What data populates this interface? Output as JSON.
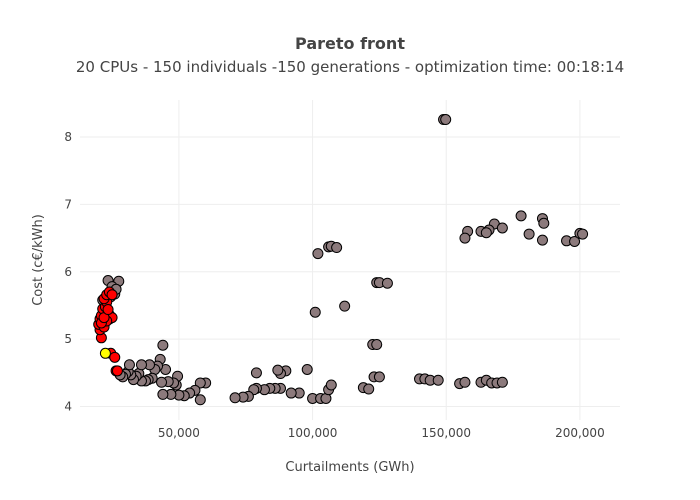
{
  "chart_data": {
    "type": "scatter",
    "title": "Pareto front",
    "subtitle": "20 CPUs - 150 individuals -150 generations - optimization time: 00:18:14",
    "xlabel": "Curtailments (GWh)",
    "ylabel": "Cost (c€/kWh)",
    "xlim": [
      13000,
      215000
    ],
    "ylim": [
      3.8,
      8.55
    ],
    "x_ticks": [
      50000,
      100000,
      150000,
      200000
    ],
    "x_tick_labels": [
      "50,000",
      "100,000",
      "150,000",
      "200,000"
    ],
    "y_ticks": [
      4,
      5,
      6,
      7,
      8
    ],
    "y_tick_labels": [
      "4",
      "5",
      "6",
      "7",
      "8"
    ],
    "grid": true,
    "legend": "none",
    "series": [
      {
        "color": "#8c7a7c",
        "points": [
          [
            149000,
            8.26
          ],
          [
            149800,
            8.26
          ],
          [
            178000,
            6.83
          ],
          [
            186000,
            6.79
          ],
          [
            168000,
            6.71
          ],
          [
            186500,
            6.72
          ],
          [
            163000,
            6.6
          ],
          [
            158000,
            6.6
          ],
          [
            166000,
            6.62
          ],
          [
            171000,
            6.65
          ],
          [
            165000,
            6.58
          ],
          [
            157000,
            6.5
          ],
          [
            181000,
            6.56
          ],
          [
            186000,
            6.47
          ],
          [
            195000,
            6.46
          ],
          [
            198000,
            6.45
          ],
          [
            200000,
            6.57
          ],
          [
            201000,
            6.56
          ],
          [
            106000,
            6.37
          ],
          [
            107000,
            6.38
          ],
          [
            109000,
            6.36
          ],
          [
            102000,
            6.27
          ],
          [
            124000,
            5.84
          ],
          [
            125000,
            5.84
          ],
          [
            128000,
            5.83
          ],
          [
            112000,
            5.49
          ],
          [
            101000,
            5.4
          ],
          [
            122500,
            4.92
          ],
          [
            124000,
            4.92
          ],
          [
            140000,
            4.41
          ],
          [
            142000,
            4.41
          ],
          [
            144000,
            4.39
          ],
          [
            147000,
            4.39
          ],
          [
            155000,
            4.34
          ],
          [
            157000,
            4.36
          ],
          [
            163000,
            4.36
          ],
          [
            165000,
            4.39
          ],
          [
            167000,
            4.35
          ],
          [
            169000,
            4.35
          ],
          [
            171000,
            4.36
          ],
          [
            123000,
            4.44
          ],
          [
            125000,
            4.44
          ],
          [
            119000,
            4.28
          ],
          [
            121000,
            4.26
          ],
          [
            98000,
            4.55
          ],
          [
            100000,
            4.12
          ],
          [
            103000,
            4.12
          ],
          [
            105000,
            4.12
          ],
          [
            106000,
            4.25
          ],
          [
            107000,
            4.32
          ],
          [
            95000,
            4.2
          ],
          [
            92000,
            4.2
          ],
          [
            90000,
            4.53
          ],
          [
            88000,
            4.49
          ],
          [
            87000,
            4.54
          ],
          [
            88000,
            4.27
          ],
          [
            86000,
            4.27
          ],
          [
            84000,
            4.27
          ],
          [
            82000,
            4.25
          ],
          [
            79000,
            4.27
          ],
          [
            78000,
            4.25
          ],
          [
            79000,
            4.5
          ],
          [
            76000,
            4.15
          ],
          [
            74000,
            4.14
          ],
          [
            71000,
            4.13
          ],
          [
            60000,
            4.35
          ],
          [
            58000,
            4.35
          ],
          [
            58000,
            4.1
          ],
          [
            56000,
            4.24
          ],
          [
            54000,
            4.2
          ],
          [
            52000,
            4.16
          ],
          [
            50000,
            4.17
          ],
          [
            49000,
            4.32
          ],
          [
            49500,
            4.45
          ],
          [
            48000,
            4.35
          ],
          [
            47000,
            4.18
          ],
          [
            46000,
            4.37
          ],
          [
            45000,
            4.55
          ],
          [
            44000,
            4.18
          ],
          [
            43500,
            4.36
          ],
          [
            43000,
            4.7
          ],
          [
            44000,
            4.91
          ],
          [
            42000,
            4.6
          ],
          [
            41000,
            4.55
          ],
          [
            40000,
            4.42
          ],
          [
            39000,
            4.62
          ],
          [
            38500,
            4.4
          ],
          [
            37500,
            4.38
          ],
          [
            36000,
            4.38
          ],
          [
            35000,
            4.49
          ],
          [
            34000,
            4.45
          ],
          [
            33000,
            4.4
          ],
          [
            32000,
            4.47
          ],
          [
            31000,
            4.52
          ],
          [
            30000,
            4.48
          ],
          [
            29000,
            4.44
          ],
          [
            28000,
            4.47
          ],
          [
            31500,
            4.62
          ],
          [
            36000,
            4.62
          ],
          [
            26000,
            5.67
          ],
          [
            24500,
            5.63
          ],
          [
            23500,
            5.87
          ],
          [
            27500,
            5.86
          ],
          [
            25000,
            5.78
          ],
          [
            26500,
            5.74
          ],
          [
            22500,
            5.55
          ],
          [
            24000,
            5.36
          ],
          [
            21500,
            5.58
          ]
        ]
      },
      {
        "color": "#ff0000",
        "points": [
          [
            26500,
            4.53
          ],
          [
            27000,
            4.53
          ],
          [
            24500,
            4.79
          ],
          [
            26000,
            4.73
          ],
          [
            21000,
            5.02
          ],
          [
            20500,
            5.14
          ],
          [
            20000,
            5.22
          ],
          [
            20500,
            5.3
          ],
          [
            21000,
            5.35
          ],
          [
            22500,
            5.4
          ],
          [
            24000,
            5.3
          ],
          [
            25000,
            5.32
          ],
          [
            22000,
            5.18
          ],
          [
            23000,
            5.27
          ],
          [
            21500,
            5.45
          ],
          [
            22500,
            5.48
          ],
          [
            23000,
            5.55
          ],
          [
            22000,
            5.6
          ],
          [
            23000,
            5.66
          ],
          [
            24000,
            5.7
          ],
          [
            25000,
            5.66
          ],
          [
            21000,
            5.24
          ],
          [
            22000,
            5.32
          ],
          [
            23500,
            5.44
          ]
        ]
      },
      {
        "color": "#ffff00",
        "points": [
          [
            22500,
            4.79
          ]
        ]
      }
    ]
  }
}
